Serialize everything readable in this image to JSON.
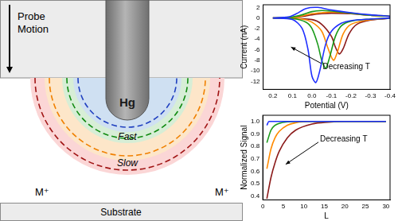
{
  "diagram": {
    "probe_label": "Probe Motion",
    "electrode_label": "Hg",
    "inner_zone_label": "Fast",
    "outer_zone_label": "Slow",
    "ion_labels": [
      "M⁺",
      "M⁺"
    ],
    "substrate_label": "Substrate"
  },
  "chart_data": [
    {
      "type": "line",
      "xlabel": "Potential (V)",
      "ylabel": "Current (nA)",
      "annotation": "Decreasing T",
      "xlim": [
        0.25,
        -0.4
      ],
      "xticks": [
        0.2,
        0.1,
        {
          "value": 0,
          "label": "0.0"
        },
        -0.1,
        -0.2,
        -0.3,
        -0.4
      ],
      "ylim": [
        -13.5,
        2.5
      ],
      "yticks": [
        2,
        0,
        -2,
        -4,
        -6,
        -8,
        -10,
        -12
      ],
      "grid": false,
      "series": [
        {
          "color": "#1f2fff",
          "x": [
            0.2,
            0.1,
            0.05,
            0.02,
            0.0,
            -0.02,
            -0.04,
            -0.07,
            -0.1,
            -0.15,
            -0.2,
            -0.3,
            -0.4,
            -0.4,
            -0.3,
            -0.2,
            -0.1,
            -0.03,
            0.03,
            0.08,
            0.12,
            0.2
          ],
          "values": [
            0,
            -0.3,
            -2,
            -6,
            -11,
            -12.2,
            -10,
            -5,
            -2.5,
            -1,
            -0.5,
            -0.2,
            0,
            0.3,
            0.6,
            1.0,
            1.5,
            2.0,
            1.8,
            0.8,
            0.2,
            0
          ]
        },
        {
          "color": "#1a9a1a",
          "x": [
            0.2,
            0.1,
            0.03,
            0.0,
            -0.03,
            -0.05,
            -0.07,
            -0.09,
            -0.12,
            -0.15,
            -0.2,
            -0.3,
            -0.4,
            -0.4,
            -0.3,
            -0.2,
            -0.1,
            -0.05,
            0.0,
            0.05,
            0.1,
            0.2
          ],
          "values": [
            0,
            -0.1,
            -0.8,
            -2,
            -5,
            -8,
            -9.5,
            -7.5,
            -3.5,
            -1.5,
            -0.6,
            -0.2,
            0,
            0.3,
            0.5,
            0.9,
            1.3,
            1.4,
            1.2,
            0.6,
            0.2,
            0
          ]
        },
        {
          "color": "#ff8a00",
          "x": [
            0.2,
            0.05,
            0.0,
            -0.05,
            -0.08,
            -0.11,
            -0.13,
            -0.16,
            -0.2,
            -0.3,
            -0.4,
            -0.4,
            -0.3,
            -0.2,
            -0.1,
            -0.05,
            0.0,
            0.05,
            0.1,
            0.2
          ],
          "values": [
            0,
            -0.2,
            -0.8,
            -2.5,
            -5.5,
            -8,
            -6.5,
            -3,
            -1.2,
            -0.3,
            0,
            0.3,
            0.5,
            0.9,
            1.1,
            1.0,
            0.8,
            0.4,
            0.1,
            0
          ]
        },
        {
          "color": "#8b1a1a",
          "x": [
            0.2,
            0.0,
            -0.05,
            -0.1,
            -0.12,
            -0.14,
            -0.16,
            -0.19,
            -0.23,
            -0.3,
            -0.4,
            -0.4,
            -0.3,
            -0.2,
            -0.1,
            -0.05,
            0.0,
            0.05,
            0.1,
            0.2
          ],
          "values": [
            0,
            -0.3,
            -1.2,
            -3.5,
            -5.5,
            -6.8,
            -5.8,
            -3,
            -1.2,
            -0.4,
            0,
            0.3,
            0.5,
            0.8,
            0.9,
            0.8,
            0.6,
            0.3,
            0.1,
            0
          ]
        }
      ]
    },
    {
      "type": "line",
      "xlabel": "L",
      "ylabel": "Normalized Signal",
      "annotation": "Decreasing T",
      "xlim": [
        0,
        31
      ],
      "xticks": [
        0,
        5,
        10,
        15,
        20,
        25,
        30
      ],
      "ylim": [
        0.37,
        1.05
      ],
      "yticks": [
        0.4,
        0.5,
        0.6,
        0.7,
        0.8,
        0.9,
        {
          "value": 1,
          "label": "1.0"
        }
      ],
      "grid": false,
      "series": [
        {
          "color": "#1f2fff",
          "x": [
            1,
            1.5,
            2,
            3,
            5,
            10,
            20,
            30
          ],
          "values": [
            0.97,
            1.0,
            1.0,
            1.0,
            1.0,
            1.0,
            1.0,
            1.0
          ]
        },
        {
          "color": "#1a9a1a",
          "x": [
            1,
            2,
            3,
            4,
            6,
            8,
            12,
            20,
            30
          ],
          "values": [
            0.83,
            0.93,
            0.97,
            0.985,
            0.997,
            1,
            1,
            1,
            1
          ]
        },
        {
          "color": "#ff8a00",
          "x": [
            1,
            2,
            3,
            4,
            6,
            8,
            12,
            20,
            30
          ],
          "values": [
            0.62,
            0.78,
            0.87,
            0.92,
            0.97,
            0.99,
            1,
            1,
            1
          ]
        },
        {
          "color": "#8b1a1a",
          "x": [
            1,
            2,
            3,
            4,
            6,
            8,
            12,
            16,
            20,
            30
          ],
          "values": [
            0.38,
            0.55,
            0.67,
            0.76,
            0.87,
            0.93,
            0.98,
            0.995,
            1,
            1
          ]
        }
      ]
    }
  ]
}
